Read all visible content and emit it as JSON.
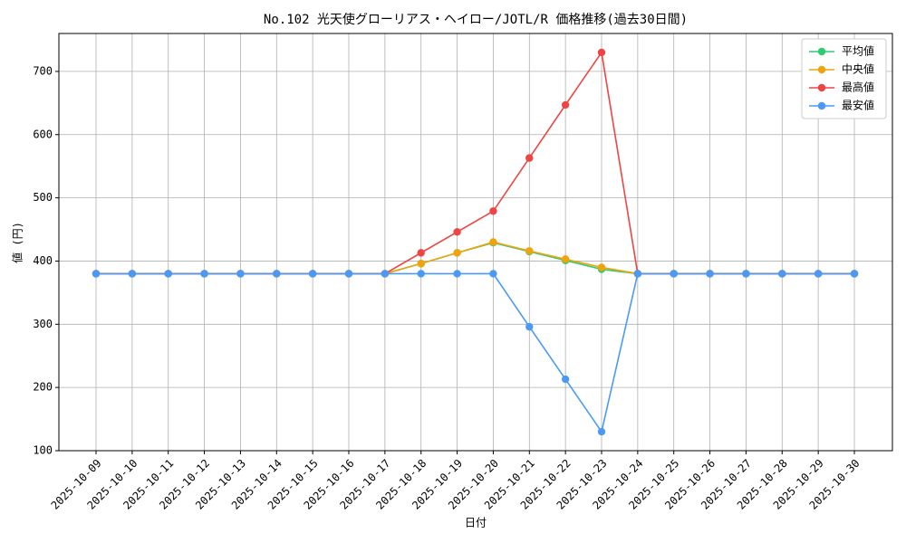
{
  "chart_data": {
    "type": "line",
    "title": "No.102 光天使グローリアス・ヘイロー/JOTL/R 価格推移(過去30日間)",
    "x_label": "日付",
    "y_label": "値 (円)",
    "categories": [
      "2025-10-09",
      "2025-10-10",
      "2025-10-11",
      "2025-10-12",
      "2025-10-13",
      "2025-10-14",
      "2025-10-15",
      "2025-10-16",
      "2025-10-17",
      "2025-10-18",
      "2025-10-19",
      "2025-10-20",
      "2025-10-21",
      "2025-10-22",
      "2025-10-23",
      "2025-10-24",
      "2025-10-25",
      "2025-10-26",
      "2025-10-27",
      "2025-10-28",
      "2025-10-29",
      "2025-10-30"
    ],
    "series": [
      {
        "name": "平均値",
        "color": "#2ecc71",
        "values": [
          380,
          380,
          380,
          380,
          380,
          380,
          380,
          380,
          380,
          396,
          413,
          429,
          415,
          401,
          387,
          380,
          380,
          380,
          380,
          380,
          380,
          380
        ]
      },
      {
        "name": "中央値",
        "color": "#f0a30a",
        "values": [
          380,
          380,
          380,
          380,
          380,
          380,
          380,
          380,
          380,
          396,
          413,
          430,
          416,
          403,
          390,
          380,
          380,
          380,
          380,
          380,
          380,
          380
        ]
      },
      {
        "name": "最高値",
        "color": "#ef4444",
        "values": [
          380,
          380,
          380,
          380,
          380,
          380,
          380,
          380,
          380,
          413,
          446,
          479,
          563,
          647,
          730,
          380,
          380,
          380,
          380,
          380,
          380,
          380
        ]
      },
      {
        "name": "最安値",
        "color": "#4a9af5",
        "values": [
          380,
          380,
          380,
          380,
          380,
          380,
          380,
          380,
          380,
          380,
          380,
          380,
          296,
          213,
          130,
          380,
          380,
          380,
          380,
          380,
          380,
          380
        ]
      }
    ],
    "ylim": [
      100,
      760
    ],
    "yticks": [
      100,
      200,
      300,
      400,
      500,
      600,
      700
    ],
    "grid": true,
    "legend": "upper right"
  }
}
